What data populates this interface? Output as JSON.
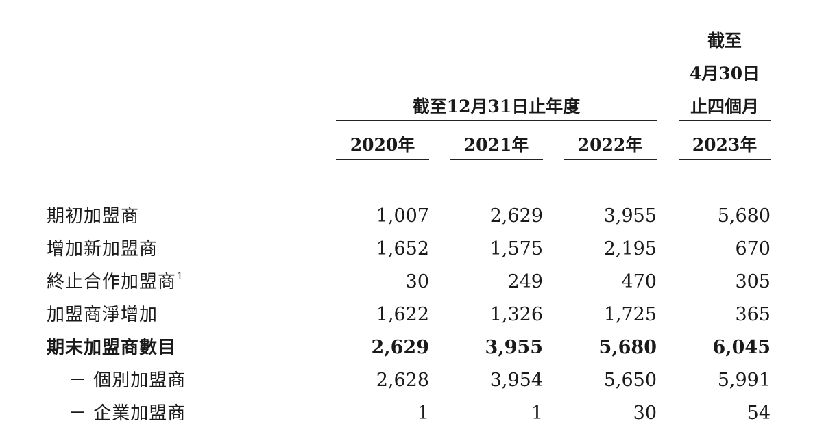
{
  "header": {
    "group_label": "截至12月31日止年度",
    "last_col_line1": "截至",
    "last_col_line2": "4月30日",
    "last_col_line3": "止四個月",
    "years": [
      "2020年",
      "2021年",
      "2022年",
      "2023年"
    ]
  },
  "rows": [
    {
      "label": "期初加盟商",
      "sup": "",
      "values": [
        "1,007",
        "2,629",
        "3,955",
        "5,680"
      ],
      "bold": false
    },
    {
      "label": "增加新加盟商",
      "sup": "",
      "values": [
        "1,652",
        "1,575",
        "2,195",
        "670"
      ],
      "bold": false
    },
    {
      "label": "終止合作加盟商",
      "sup": "1",
      "values": [
        "30",
        "249",
        "470",
        "305"
      ],
      "bold": false
    },
    {
      "label": "加盟商淨增加",
      "sup": "",
      "values": [
        "1,622",
        "1,326",
        "1,725",
        "365"
      ],
      "bold": false
    },
    {
      "label": "期末加盟商數目",
      "sup": "",
      "values": [
        "2,629",
        "3,955",
        "5,680",
        "6,045"
      ],
      "bold": true
    },
    {
      "label": "－ 個別加盟商",
      "sup": "",
      "values": [
        "2,628",
        "3,954",
        "5,650",
        "5,991"
      ],
      "bold": false
    },
    {
      "label": "－ 企業加盟商",
      "sup": "",
      "values": [
        "1",
        "1",
        "30",
        "54"
      ],
      "bold": false
    }
  ]
}
